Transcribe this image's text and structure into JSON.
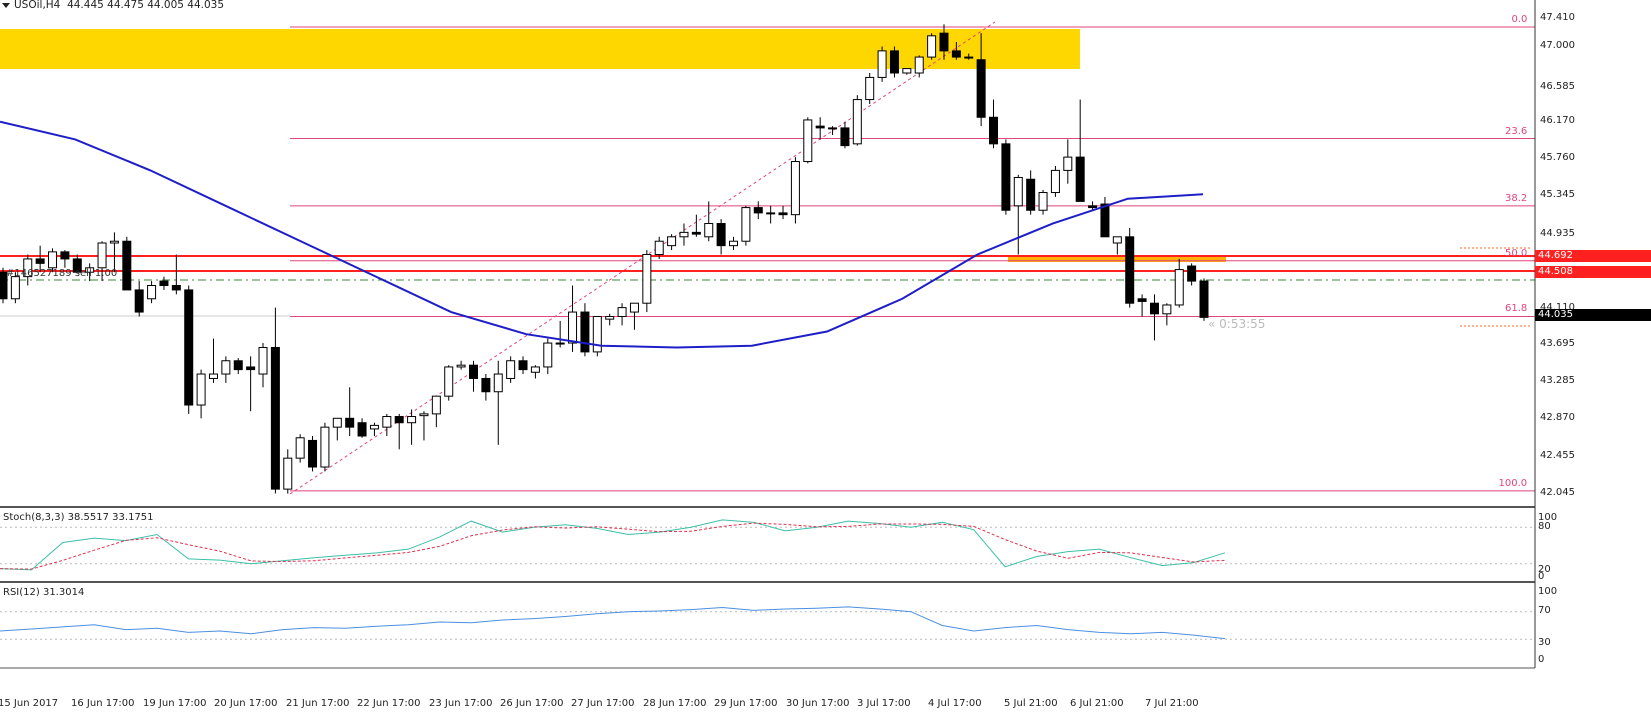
{
  "header": {
    "symbol": "USOil,H4",
    "ohlc": "44.445 44.475 44.005 44.035"
  },
  "price_axis": {
    "ticks": [
      "47.410",
      "47.000",
      "46.585",
      "46.170",
      "45.760",
      "45.345",
      "44.935",
      "44.110",
      "43.695",
      "43.285",
      "42.870",
      "42.455",
      "42.045"
    ],
    "labels": [
      {
        "value": "44.692",
        "color": "#ff2020"
      },
      {
        "value": "44.508",
        "color": "#ff2020"
      },
      {
        "value": "44.035",
        "color": "#000000"
      }
    ]
  },
  "fib_levels": [
    {
      "label": "0.0",
      "price": 47.32
    },
    {
      "label": "23.6",
      "price": 46.06
    },
    {
      "label": "38.2",
      "price": 45.3
    },
    {
      "label": "50.0",
      "price": 44.68
    },
    {
      "label": "61.8",
      "price": 44.05
    },
    {
      "label": "100.0",
      "price": 42.08
    }
  ],
  "order_label": "#146527189 sell 1.00",
  "countdown": "« 0:53:55",
  "stoch": {
    "label": "Stoch(8,3,3) 38.5517 33.1751",
    "ticks": [
      "100",
      "80",
      "20",
      "0"
    ]
  },
  "rsi": {
    "label": "RSI(12) 31.3014",
    "ticks": [
      "100",
      "70",
      "30",
      "0"
    ]
  },
  "time_axis": [
    "15 Jun 2017",
    "16 Jun 17:00",
    "19 Jun 17:00",
    "20 Jun 17:00",
    "21 Jun 17:00",
    "22 Jun 17:00",
    "23 Jun 17:00",
    "26 Jun 17:00",
    "27 Jun 17:00",
    "28 Jun 17:00",
    "29 Jun 17:00",
    "30 Jun 17:00",
    "3 Jul 17:00",
    "4 Jul 17:00",
    "5 Jul 21:00",
    "6 Jul 21:00",
    "7 Jul 21:00"
  ],
  "colors": {
    "bull": "#ffffff",
    "bear": "#000000",
    "ma": "#1e1ec8",
    "fib": "#e0457b",
    "zone": "#ffd700",
    "zone2": "#ffb000",
    "hline": "#ff2020",
    "stoch_main": "#3cbfa8",
    "stoch_signal": "#e03050",
    "rsi": "#4a90e0"
  },
  "chart_data": {
    "type": "candlestick",
    "title": "USOil,H4",
    "ylim": [
      42.0,
      47.5
    ],
    "candles_ohlc": [
      [
        44.55,
        44.6,
        44.2,
        44.25
      ],
      [
        44.25,
        44.55,
        44.2,
        44.5
      ],
      [
        44.5,
        44.75,
        44.4,
        44.7
      ],
      [
        44.7,
        44.85,
        44.55,
        44.65
      ],
      [
        44.6,
        44.82,
        44.55,
        44.78
      ],
      [
        44.78,
        44.8,
        44.6,
        44.7
      ],
      [
        44.7,
        44.75,
        44.55,
        44.55
      ],
      [
        44.55,
        44.65,
        44.45,
        44.6
      ],
      [
        44.6,
        44.9,
        44.45,
        44.88
      ],
      [
        44.88,
        45.0,
        44.55,
        44.9
      ],
      [
        44.9,
        44.95,
        44.4,
        44.35
      ],
      [
        44.35,
        44.45,
        44.05,
        44.1
      ],
      [
        44.25,
        44.45,
        44.2,
        44.4
      ],
      [
        44.45,
        44.5,
        44.35,
        44.4
      ],
      [
        44.4,
        44.75,
        44.3,
        44.35
      ],
      [
        44.35,
        44.4,
        42.95,
        43.05
      ],
      [
        43.05,
        43.45,
        42.9,
        43.4
      ],
      [
        43.35,
        43.8,
        43.3,
        43.4
      ],
      [
        43.4,
        43.6,
        43.3,
        43.55
      ],
      [
        43.55,
        43.58,
        43.4,
        43.45
      ],
      [
        43.48,
        43.6,
        42.98,
        43.45
      ],
      [
        43.4,
        43.75,
        43.25,
        43.7
      ],
      [
        43.7,
        44.15,
        42.05,
        42.1
      ],
      [
        42.1,
        42.55,
        42.05,
        42.45
      ],
      [
        42.45,
        42.72,
        42.4,
        42.68
      ],
      [
        42.65,
        42.7,
        42.3,
        42.35
      ],
      [
        42.35,
        42.85,
        42.3,
        42.8
      ],
      [
        42.8,
        42.9,
        42.65,
        42.9
      ],
      [
        42.9,
        43.25,
        42.7,
        42.8
      ],
      [
        42.85,
        42.9,
        42.68,
        42.7
      ],
      [
        42.78,
        42.85,
        42.7,
        42.82
      ],
      [
        42.8,
        42.95,
        42.7,
        42.92
      ],
      [
        42.92,
        42.95,
        42.55,
        42.85
      ],
      [
        42.85,
        43.0,
        42.6,
        42.92
      ],
      [
        42.93,
        42.98,
        42.65,
        42.95
      ],
      [
        42.95,
        43.0,
        42.8,
        43.15
      ],
      [
        43.15,
        43.5,
        43.1,
        43.48
      ],
      [
        43.48,
        43.55,
        43.45,
        43.5
      ],
      [
        43.5,
        43.55,
        43.2,
        43.35
      ],
      [
        43.35,
        43.4,
        43.1,
        43.2
      ],
      [
        43.2,
        43.55,
        42.6,
        43.4
      ],
      [
        43.35,
        43.6,
        43.3,
        43.55
      ],
      [
        43.55,
        43.6,
        43.4,
        43.45
      ],
      [
        43.42,
        43.5,
        43.35,
        43.48
      ],
      [
        43.48,
        43.8,
        43.4,
        43.75
      ],
      [
        43.75,
        44.0,
        43.7,
        43.75
      ],
      [
        43.75,
        44.4,
        43.65,
        44.1
      ],
      [
        44.1,
        44.2,
        43.6,
        43.65
      ],
      [
        43.65,
        44.0,
        43.6,
        44.05
      ],
      [
        44.02,
        44.08,
        43.95,
        44.05
      ],
      [
        44.05,
        44.2,
        43.95,
        44.15
      ],
      [
        44.1,
        44.2,
        43.9,
        44.2
      ],
      [
        44.2,
        44.8,
        44.1,
        44.75
      ],
      [
        44.75,
        44.95,
        44.7,
        44.9
      ],
      [
        44.85,
        44.98,
        44.8,
        44.95
      ],
      [
        44.95,
        45.1,
        44.85,
        45.0
      ],
      [
        45.0,
        45.2,
        44.95,
        44.98
      ],
      [
        44.95,
        45.35,
        44.9,
        45.1
      ],
      [
        45.1,
        45.15,
        44.75,
        44.85
      ],
      [
        44.85,
        44.95,
        44.8,
        44.9
      ],
      [
        44.9,
        45.3,
        44.85,
        45.28
      ],
      [
        45.28,
        45.35,
        45.15,
        45.22
      ],
      [
        45.22,
        45.3,
        45.1,
        45.22
      ],
      [
        45.22,
        45.3,
        45.15,
        45.2
      ],
      [
        45.2,
        45.85,
        45.1,
        45.8
      ],
      [
        45.8,
        46.3,
        45.78,
        46.27
      ],
      [
        46.2,
        46.3,
        46.05,
        46.18
      ],
      [
        46.18,
        46.2,
        46.1,
        46.18
      ],
      [
        46.18,
        46.25,
        45.95,
        45.98
      ],
      [
        46.0,
        46.55,
        45.98,
        46.5
      ],
      [
        46.5,
        46.8,
        46.45,
        46.75
      ],
      [
        46.75,
        47.1,
        46.7,
        47.05
      ],
      [
        47.05,
        47.1,
        46.75,
        46.8
      ],
      [
        46.8,
        46.85,
        46.78,
        46.85
      ],
      [
        46.8,
        47.0,
        46.75,
        46.98
      ],
      [
        46.98,
        47.25,
        46.95,
        47.22
      ],
      [
        47.25,
        47.35,
        46.95,
        47.05
      ],
      [
        47.05,
        47.15,
        46.95,
        46.98
      ],
      [
        46.98,
        47.02,
        46.95,
        46.98
      ],
      [
        46.95,
        47.25,
        46.2,
        46.3
      ],
      [
        46.3,
        46.5,
        45.95,
        46.0
      ],
      [
        46.0,
        46.05,
        45.2,
        45.25
      ],
      [
        45.3,
        45.65,
        44.75,
        45.62
      ],
      [
        45.6,
        45.7,
        45.2,
        45.25
      ],
      [
        45.25,
        45.48,
        45.2,
        45.45
      ],
      [
        45.45,
        45.75,
        45.4,
        45.7
      ],
      [
        45.7,
        46.05,
        45.55,
        45.85
      ],
      [
        45.85,
        46.5,
        45.35,
        45.35
      ],
      [
        45.3,
        45.35,
        45.25,
        45.28
      ],
      [
        45.32,
        45.4,
        44.95,
        44.95
      ],
      [
        44.88,
        44.93,
        44.75,
        44.95
      ],
      [
        44.95,
        45.05,
        44.15,
        44.2
      ],
      [
        44.25,
        44.3,
        44.05,
        44.22
      ],
      [
        44.2,
        44.3,
        43.78,
        44.08
      ],
      [
        44.08,
        44.2,
        43.95,
        44.18
      ],
      [
        44.18,
        44.7,
        44.15,
        44.58
      ],
      [
        44.62,
        44.65,
        44.4,
        44.45
      ],
      [
        44.45,
        44.48,
        44.0,
        44.04
      ]
    ],
    "ma_series": [
      46.25,
      46.05,
      45.7,
      45.3,
      44.9,
      44.5,
      44.1,
      43.85,
      43.72,
      43.7,
      43.72,
      43.88,
      44.25,
      44.75,
      45.1,
      45.38,
      45.43
    ],
    "stoch_main": [
      12,
      10,
      55,
      62,
      58,
      68,
      28,
      26,
      20,
      25,
      30,
      34,
      38,
      44,
      64,
      90,
      72,
      80,
      84,
      78,
      68,
      72,
      80,
      92,
      88,
      74,
      80,
      90,
      86,
      80,
      88,
      76,
      15,
      32,
      40,
      44,
      30,
      17,
      22,
      38
    ],
    "rsi_values": [
      42,
      45,
      48,
      51,
      44,
      46,
      40,
      42,
      38,
      44,
      47,
      46,
      49,
      51,
      55,
      54,
      58,
      60,
      63,
      67,
      70,
      71,
      73,
      76,
      72,
      74,
      75,
      77,
      74,
      70,
      50,
      42,
      47,
      50,
      44,
      40,
      38,
      40,
      36,
      31
    ]
  }
}
